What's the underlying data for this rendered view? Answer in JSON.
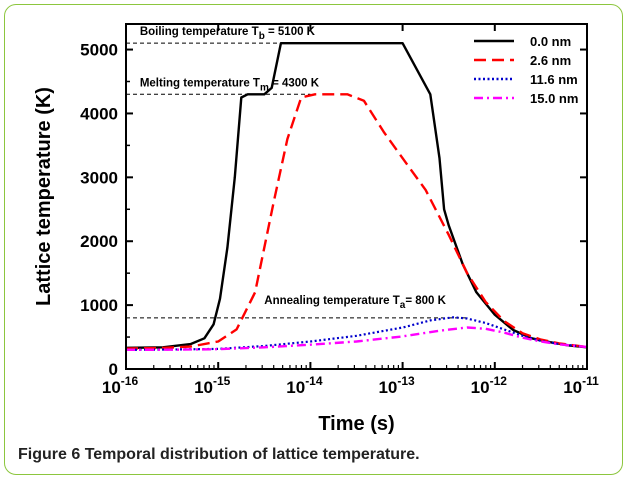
{
  "caption": {
    "label": "Figure 6",
    "text": "Temporal distribution of lattice temperature."
  },
  "chart_data": {
    "type": "line",
    "xlabel": "Time (s)",
    "ylabel": "Lattice temperature (K)",
    "xscale": "log",
    "xlim_exp": [
      -16,
      -11
    ],
    "ylim": [
      0,
      5400
    ],
    "y_ticks": [
      0,
      1000,
      2000,
      3000,
      4000,
      5000
    ],
    "x_tick_exponents": [
      -16,
      -15,
      -14,
      -13,
      -12,
      -11
    ],
    "x_tick_base": "10",
    "legend_position": "top-right",
    "annotations": [
      {
        "id": "boiling",
        "prefix": "Boiling temperature T",
        "sub": "b",
        "suffix": " = 5100 K",
        "value": 5100
      },
      {
        "id": "melting",
        "prefix": "Melting temperature  T",
        "sub": "m",
        "suffix": " = 4300 K",
        "value": 4300
      },
      {
        "id": "annealing",
        "prefix": "Annealing temperature  T",
        "sub": "a",
        "suffix": "= 800 K",
        "value": 800
      }
    ],
    "series": [
      {
        "name": "0.0 nm",
        "color": "#000000",
        "dash": "solid",
        "points": [
          [
            -16,
            330
          ],
          [
            -15.6,
            340
          ],
          [
            -15.3,
            390
          ],
          [
            -15.15,
            480
          ],
          [
            -15.05,
            700
          ],
          [
            -14.98,
            1100
          ],
          [
            -14.9,
            1900
          ],
          [
            -14.82,
            3000
          ],
          [
            -14.75,
            4250
          ],
          [
            -14.68,
            4300
          ],
          [
            -14.5,
            4300
          ],
          [
            -14.42,
            4400
          ],
          [
            -14.32,
            5100
          ],
          [
            -13.0,
            5100
          ],
          [
            -12.7,
            4300
          ],
          [
            -12.6,
            3300
          ],
          [
            -12.55,
            2500
          ],
          [
            -12.5,
            2250
          ],
          [
            -12.35,
            1650
          ],
          [
            -12.2,
            1200
          ],
          [
            -12.0,
            850
          ],
          [
            -11.8,
            610
          ],
          [
            -11.6,
            480
          ],
          [
            -11.4,
            420
          ],
          [
            -11.2,
            370
          ],
          [
            -11.0,
            340
          ]
        ]
      },
      {
        "name": "2.6 nm",
        "color": "#ff0000",
        "dash": "dashed",
        "points": [
          [
            -16,
            320
          ],
          [
            -15.6,
            330
          ],
          [
            -15.3,
            350
          ],
          [
            -15.0,
            430
          ],
          [
            -14.8,
            620
          ],
          [
            -14.6,
            1200
          ],
          [
            -14.4,
            2600
          ],
          [
            -14.25,
            3600
          ],
          [
            -14.1,
            4250
          ],
          [
            -13.95,
            4300
          ],
          [
            -13.6,
            4300
          ],
          [
            -13.42,
            4200
          ],
          [
            -13.2,
            3700
          ],
          [
            -13.0,
            3300
          ],
          [
            -12.75,
            2800
          ],
          [
            -12.5,
            2100
          ],
          [
            -12.3,
            1500
          ],
          [
            -12.1,
            1050
          ],
          [
            -11.9,
            750
          ],
          [
            -11.7,
            560
          ],
          [
            -11.5,
            460
          ],
          [
            -11.3,
            400
          ],
          [
            -11.0,
            345
          ]
        ]
      },
      {
        "name": "11.6 nm",
        "color": "#0000cc",
        "dash": "dotted",
        "points": [
          [
            -16,
            300
          ],
          [
            -15.5,
            305
          ],
          [
            -15.0,
            315
          ],
          [
            -14.5,
            360
          ],
          [
            -14.0,
            430
          ],
          [
            -13.5,
            520
          ],
          [
            -13.0,
            650
          ],
          [
            -12.7,
            760
          ],
          [
            -12.45,
            810
          ],
          [
            -12.3,
            790
          ],
          [
            -12.1,
            720
          ],
          [
            -11.9,
            620
          ],
          [
            -11.7,
            520
          ],
          [
            -11.5,
            440
          ],
          [
            -11.3,
            390
          ],
          [
            -11.0,
            345
          ]
        ]
      },
      {
        "name": "15.0 nm",
        "color": "#ff00ff",
        "dash": "dashdot",
        "points": [
          [
            -16,
            300
          ],
          [
            -15.5,
            302
          ],
          [
            -15.0,
            310
          ],
          [
            -14.5,
            340
          ],
          [
            -14.0,
            380
          ],
          [
            -13.5,
            430
          ],
          [
            -13.0,
            510
          ],
          [
            -12.6,
            600
          ],
          [
            -12.3,
            650
          ],
          [
            -12.1,
            630
          ],
          [
            -11.9,
            570
          ],
          [
            -11.7,
            490
          ],
          [
            -11.5,
            430
          ],
          [
            -11.3,
            385
          ],
          [
            -11.0,
            345
          ]
        ]
      }
    ]
  }
}
